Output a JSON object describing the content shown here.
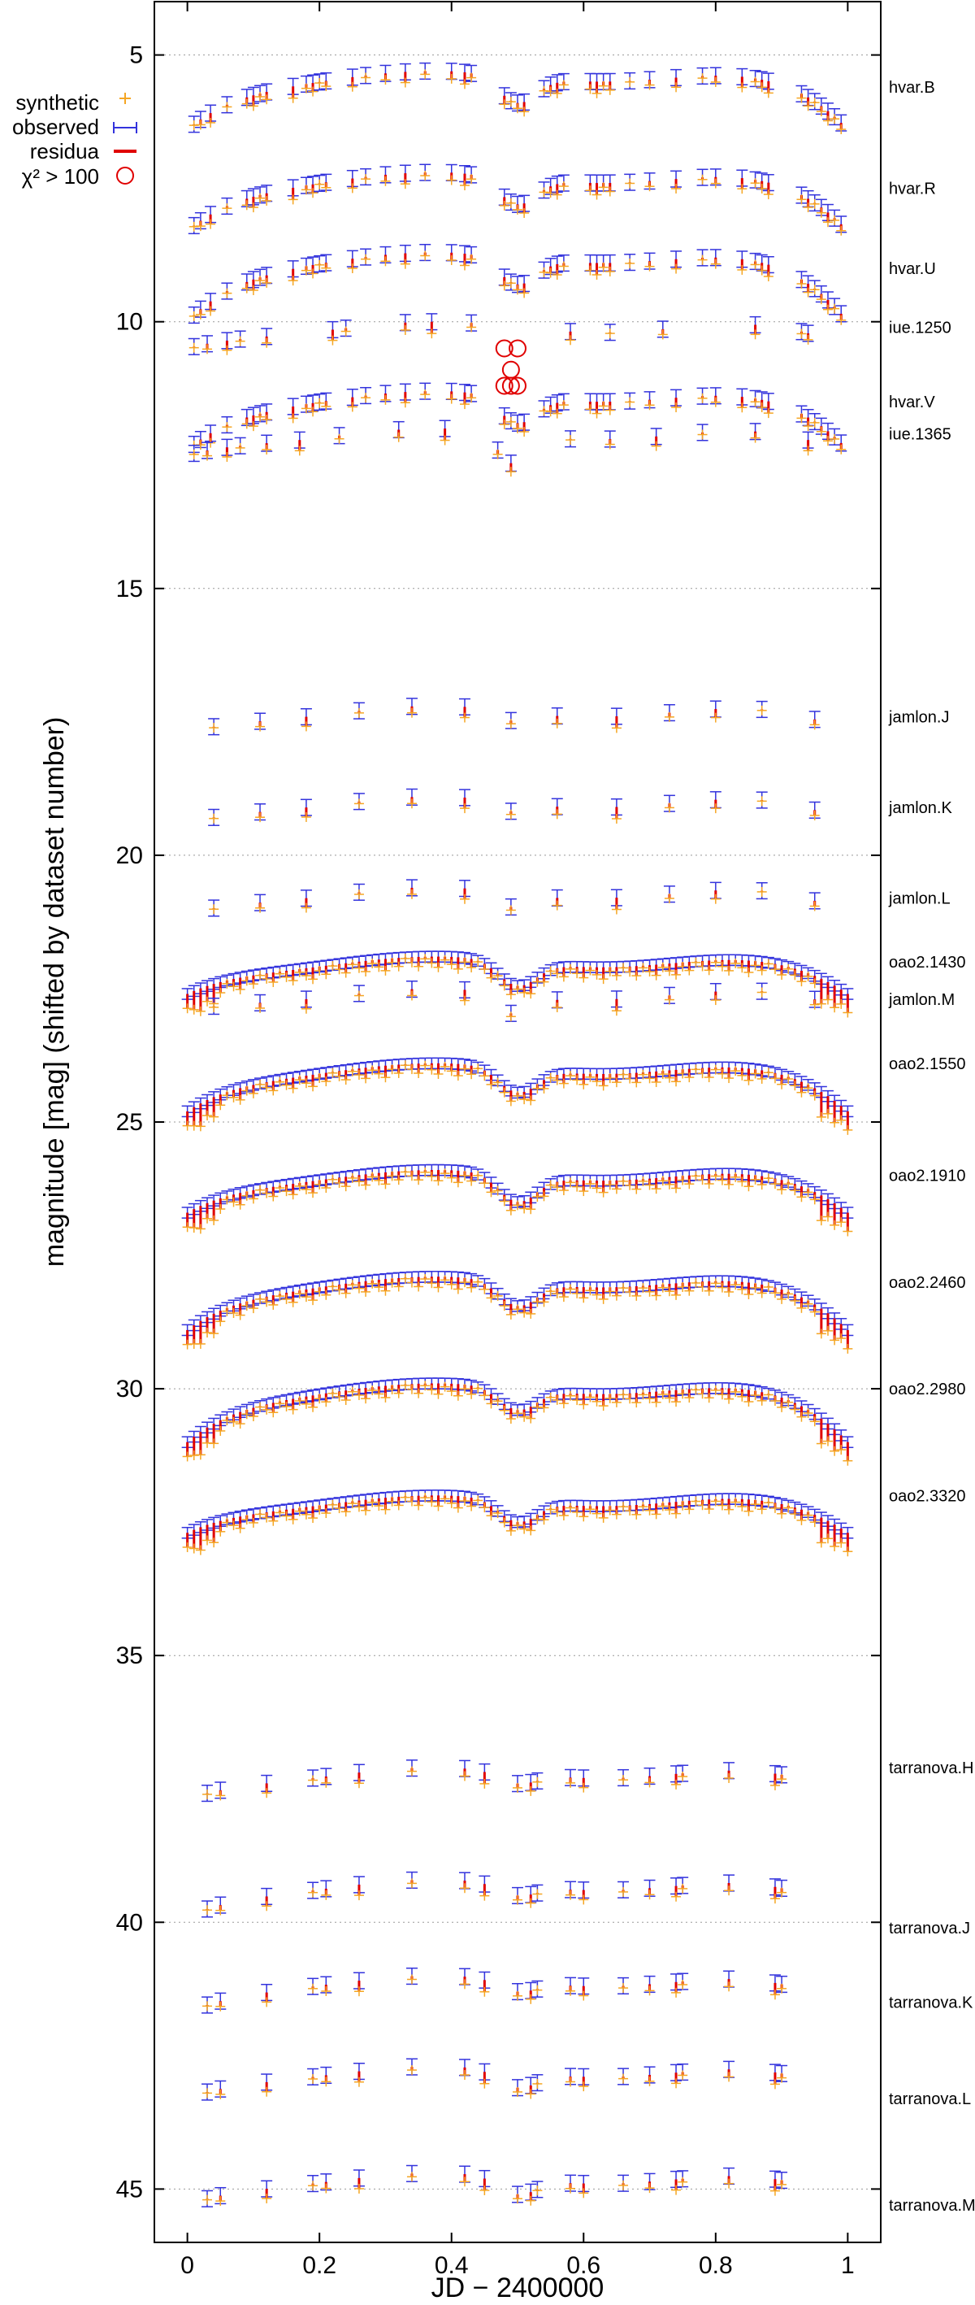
{
  "chart_data": {
    "type": "scatter",
    "title": "",
    "xlabel": "JD − 2400000",
    "ylabel": "magnitude [mag] (shifted by dataset number)",
    "xlim": [
      -0.05,
      1.05
    ],
    "ylim": [
      4,
      46
    ],
    "y_inverted": true,
    "grid": "horizontal dotted",
    "x_ticks": [
      0,
      0.2,
      0.4,
      0.6,
      0.8,
      1
    ],
    "x_tick_labels": [
      "0",
      "0.2",
      "0.4",
      "0.6",
      "0.8",
      "1"
    ],
    "y_ticks": [
      5,
      10,
      15,
      20,
      25,
      30,
      35,
      40,
      45
    ],
    "y_tick_labels": [
      "5",
      "10",
      "15",
      "20",
      "25",
      "30",
      "35",
      "40",
      "45"
    ],
    "legend": {
      "placement": "top-left",
      "entries": [
        {
          "label": "synthetic",
          "color": "#f5a623",
          "marker": "plus"
        },
        {
          "label": "observed",
          "color": "#3333dd",
          "marker": "errorbar"
        },
        {
          "label": "residua",
          "color": "#e00000",
          "marker": "line"
        },
        {
          "label": "χ² > 100",
          "color": "#e00000",
          "marker": "circle"
        }
      ]
    },
    "datasets": [
      {
        "name": "hvar.B",
        "label_y": 5.6,
        "baseline": 5.4,
        "amp": 1.0,
        "eclipse_depth": 0.5,
        "xs": [
          0.01,
          0.02,
          0.035,
          0.06,
          0.09,
          0.1,
          0.11,
          0.12,
          0.16,
          0.18,
          0.19,
          0.2,
          0.21,
          0.25,
          0.27,
          0.3,
          0.33,
          0.36,
          0.4,
          0.42,
          0.43,
          0.48,
          0.49,
          0.5,
          0.51,
          0.54,
          0.55,
          0.56,
          0.57,
          0.61,
          0.62,
          0.63,
          0.64,
          0.67,
          0.7,
          0.74,
          0.78,
          0.8,
          0.84,
          0.86,
          0.87,
          0.88,
          0.93,
          0.94,
          0.95,
          0.96,
          0.97,
          0.98,
          0.99
        ]
      },
      {
        "name": "hvar.R",
        "label_y": 7.5,
        "baseline": 7.3,
        "amp": 1.0,
        "eclipse_depth": 0.5,
        "xs": [
          0.01,
          0.02,
          0.035,
          0.06,
          0.09,
          0.1,
          0.11,
          0.12,
          0.16,
          0.18,
          0.19,
          0.2,
          0.21,
          0.25,
          0.27,
          0.3,
          0.33,
          0.36,
          0.4,
          0.42,
          0.43,
          0.48,
          0.49,
          0.5,
          0.51,
          0.54,
          0.55,
          0.56,
          0.57,
          0.61,
          0.62,
          0.63,
          0.64,
          0.67,
          0.7,
          0.74,
          0.78,
          0.8,
          0.84,
          0.86,
          0.87,
          0.88,
          0.93,
          0.94,
          0.95,
          0.96,
          0.97,
          0.98,
          0.99
        ]
      },
      {
        "name": "hvar.U",
        "label_y": 9.0,
        "baseline": 8.8,
        "amp": 1.2,
        "eclipse_depth": 0.5,
        "xs": [
          0.01,
          0.02,
          0.035,
          0.06,
          0.09,
          0.1,
          0.11,
          0.12,
          0.16,
          0.18,
          0.19,
          0.2,
          0.21,
          0.25,
          0.27,
          0.3,
          0.33,
          0.36,
          0.4,
          0.42,
          0.43,
          0.48,
          0.49,
          0.5,
          0.51,
          0.54,
          0.55,
          0.56,
          0.57,
          0.61,
          0.62,
          0.63,
          0.64,
          0.67,
          0.7,
          0.74,
          0.78,
          0.8,
          0.84,
          0.86,
          0.87,
          0.88,
          0.93,
          0.94,
          0.95,
          0.96,
          0.97,
          0.98,
          0.99
        ]
      },
      {
        "name": "iue.1250",
        "label_y": 10.1,
        "baseline": 10.1,
        "amp": 0.4,
        "eclipse_depth": 0.0,
        "xs": [
          0.01,
          0.03,
          0.06,
          0.08,
          0.12,
          0.22,
          0.24,
          0.33,
          0.37,
          0.43,
          0.58,
          0.64,
          0.72,
          0.86,
          0.93,
          0.94
        ]
      },
      {
        "name": "hvar.V",
        "label_y": 11.5,
        "baseline": 11.4,
        "amp": 1.0,
        "eclipse_depth": 0.5,
        "xs": [
          0.01,
          0.02,
          0.035,
          0.06,
          0.09,
          0.1,
          0.11,
          0.12,
          0.16,
          0.18,
          0.19,
          0.2,
          0.21,
          0.25,
          0.27,
          0.3,
          0.33,
          0.36,
          0.4,
          0.42,
          0.43,
          0.48,
          0.49,
          0.5,
          0.51,
          0.54,
          0.55,
          0.56,
          0.57,
          0.61,
          0.62,
          0.63,
          0.64,
          0.67,
          0.7,
          0.74,
          0.78,
          0.8,
          0.84,
          0.86,
          0.87,
          0.88,
          0.93,
          0.94,
          0.95,
          0.96,
          0.97,
          0.98,
          0.99
        ]
      },
      {
        "name": "iue.1365",
        "label_y": 12.1,
        "baseline": 12.1,
        "amp": 0.4,
        "eclipse_depth": 0.6,
        "xs": [
          0.01,
          0.03,
          0.06,
          0.08,
          0.12,
          0.17,
          0.23,
          0.32,
          0.39,
          0.47,
          0.49,
          0.58,
          0.64,
          0.71,
          0.78,
          0.86,
          0.94
        ]
      },
      {
        "name": "jamlon.J",
        "label_y": 17.4,
        "baseline": 17.3,
        "amp": 0.4,
        "eclipse_depth": 0.2,
        "xs": [
          0.04,
          0.11,
          0.18,
          0.26,
          0.34,
          0.42,
          0.49,
          0.56,
          0.65,
          0.73,
          0.8,
          0.87,
          0.95
        ]
      },
      {
        "name": "jamlon.K",
        "label_y": 19.1,
        "baseline": 19.0,
        "amp": 0.4,
        "eclipse_depth": 0.2,
        "xs": [
          0.04,
          0.11,
          0.18,
          0.26,
          0.34,
          0.42,
          0.49,
          0.56,
          0.65,
          0.73,
          0.8,
          0.87,
          0.95
        ]
      },
      {
        "name": "jamlon.L",
        "label_y": 20.8,
        "baseline": 20.7,
        "amp": 0.4,
        "eclipse_depth": 0.3,
        "xs": [
          0.04,
          0.11,
          0.18,
          0.26,
          0.34,
          0.42,
          0.49,
          0.56,
          0.65,
          0.73,
          0.8,
          0.87,
          0.95
        ]
      },
      {
        "name": "oao2.1430",
        "label_y": 22.0,
        "baseline": 22.0,
        "amp": 0.6,
        "eclipse_depth": 0.45,
        "dense": true
      },
      {
        "name": "jamlon.M",
        "label_y": 22.7,
        "baseline": 22.6,
        "amp": 0.3,
        "eclipse_depth": 0.4,
        "xs": [
          0.04,
          0.11,
          0.18,
          0.26,
          0.34,
          0.42,
          0.49,
          0.56,
          0.65,
          0.73,
          0.8,
          0.87,
          0.95
        ]
      },
      {
        "name": "oao2.1550",
        "label_y": 23.9,
        "baseline": 24.0,
        "amp": 0.8,
        "eclipse_depth": 0.45,
        "dense": true
      },
      {
        "name": "oao2.1910",
        "label_y": 26.0,
        "baseline": 26.0,
        "amp": 0.7,
        "eclipse_depth": 0.5,
        "dense": true
      },
      {
        "name": "oao2.2460",
        "label_y": 28.0,
        "baseline": 28.0,
        "amp": 0.9,
        "eclipse_depth": 0.45,
        "dense": true
      },
      {
        "name": "oao2.2980",
        "label_y": 30.0,
        "baseline": 30.0,
        "amp": 1.0,
        "eclipse_depth": 0.4,
        "dense": true
      },
      {
        "name": "oao2.3320",
        "label_y": 32.0,
        "baseline": 32.1,
        "amp": 0.6,
        "eclipse_depth": 0.4,
        "dense": true
      },
      {
        "name": "tarranova.H",
        "label_y": 37.1,
        "baseline": 37.2,
        "amp": 0.5,
        "eclipse_depth": 0.2,
        "xs": [
          0.03,
          0.05,
          0.12,
          0.19,
          0.21,
          0.26,
          0.34,
          0.42,
          0.45,
          0.5,
          0.52,
          0.53,
          0.58,
          0.6,
          0.66,
          0.7,
          0.74,
          0.75,
          0.82,
          0.89,
          0.9
        ]
      },
      {
        "name": "tarranova.J",
        "label_y": 40.1,
        "baseline": 39.3,
        "amp": 0.6,
        "eclipse_depth": 0.2,
        "xs": [
          0.03,
          0.05,
          0.12,
          0.19,
          0.21,
          0.26,
          0.34,
          0.42,
          0.45,
          0.5,
          0.52,
          0.53,
          0.58,
          0.6,
          0.66,
          0.7,
          0.74,
          0.75,
          0.82,
          0.89,
          0.9
        ]
      },
      {
        "name": "tarranova.K",
        "label_y": 41.5,
        "baseline": 41.1,
        "amp": 0.6,
        "eclipse_depth": 0.2,
        "xs": [
          0.03,
          0.05,
          0.12,
          0.19,
          0.21,
          0.26,
          0.34,
          0.42,
          0.45,
          0.5,
          0.52,
          0.53,
          0.58,
          0.6,
          0.66,
          0.7,
          0.74,
          0.75,
          0.82,
          0.89,
          0.9
        ]
      },
      {
        "name": "tarranova.L",
        "label_y": 43.3,
        "baseline": 42.8,
        "amp": 0.5,
        "eclipse_depth": 0.3,
        "xs": [
          0.03,
          0.05,
          0.12,
          0.19,
          0.21,
          0.26,
          0.34,
          0.42,
          0.45,
          0.5,
          0.52,
          0.53,
          0.58,
          0.6,
          0.66,
          0.7,
          0.74,
          0.75,
          0.82,
          0.89,
          0.9
        ]
      },
      {
        "name": "tarranova.M",
        "label_y": 45.3,
        "baseline": 44.8,
        "amp": 0.5,
        "eclipse_depth": 0.3,
        "xs": [
          0.03,
          0.05,
          0.12,
          0.19,
          0.21,
          0.26,
          0.34,
          0.42,
          0.45,
          0.5,
          0.52,
          0.53,
          0.58,
          0.6,
          0.66,
          0.7,
          0.74,
          0.75,
          0.82,
          0.89,
          0.9
        ]
      }
    ],
    "outliers": [
      {
        "x": 0.48,
        "y": 10.5
      },
      {
        "x": 0.49,
        "y": 10.9
      },
      {
        "x": 0.5,
        "y": 10.5
      },
      {
        "x": 0.49,
        "y": 11.2
      },
      {
        "x": 0.5,
        "y": 11.2
      },
      {
        "x": 0.48,
        "y": 11.2
      }
    ]
  },
  "colors": {
    "synthetic": "#f5a623",
    "observed": "#3333dd",
    "residua": "#e00000",
    "grid": "#999999",
    "axis": "#000000"
  }
}
